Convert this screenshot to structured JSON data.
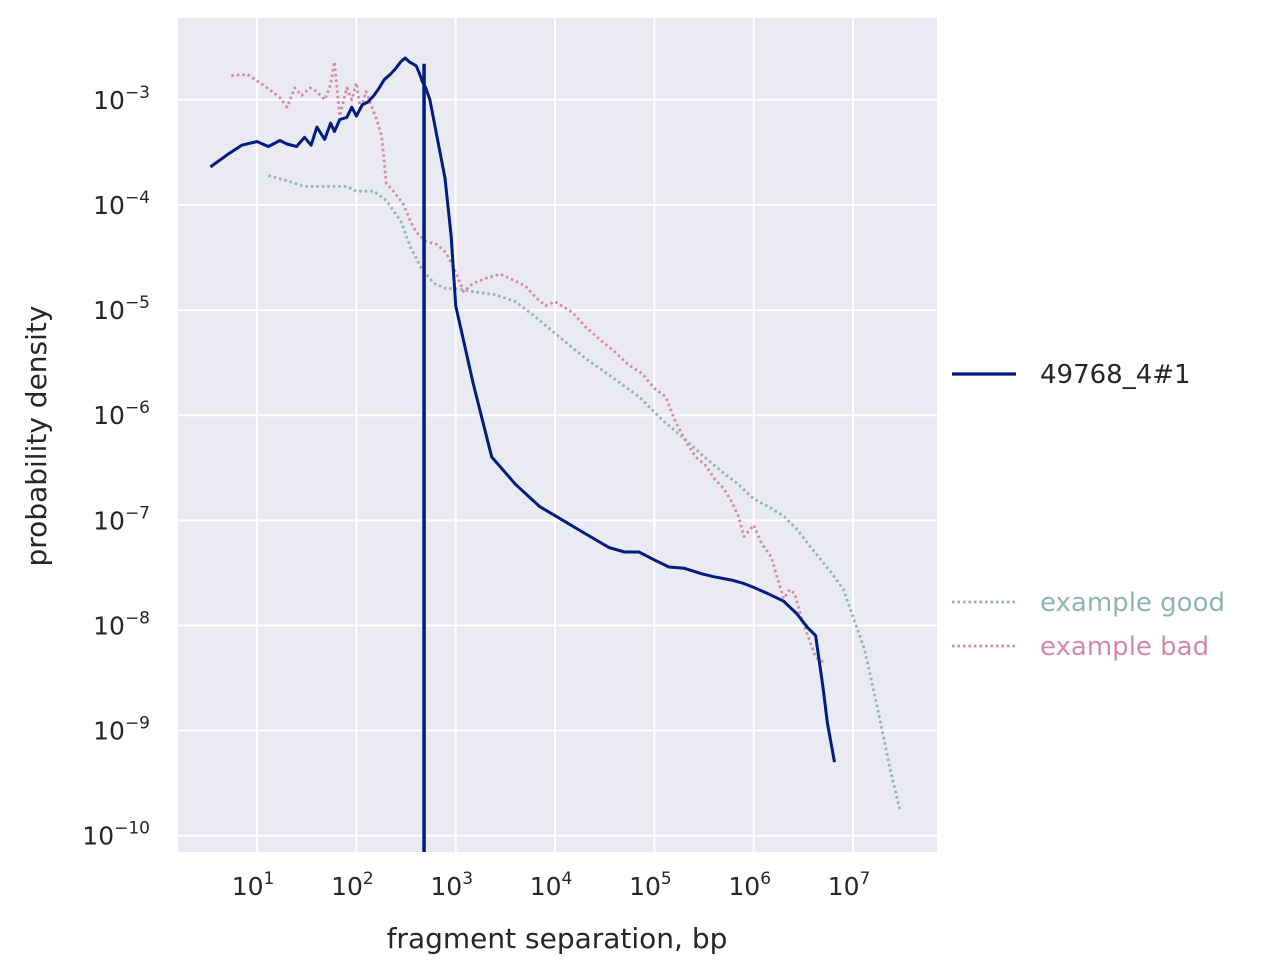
{
  "chart_data": {
    "type": "line",
    "xlabel": "fragment separation, bp",
    "ylabel": "probability density",
    "x_scale": "log",
    "y_scale": "log",
    "xlim": [
      1.6,
      70000000
    ],
    "ylim": [
      7e-11,
      0.006
    ],
    "grid": true,
    "x_ticks": [
      {
        "value": 10,
        "base": "10",
        "exp": "1"
      },
      {
        "value": 100,
        "base": "10",
        "exp": "2"
      },
      {
        "value": 1000,
        "base": "10",
        "exp": "3"
      },
      {
        "value": 10000,
        "base": "10",
        "exp": "4"
      },
      {
        "value": 100000,
        "base": "10",
        "exp": "5"
      },
      {
        "value": 1000000,
        "base": "10",
        "exp": "6"
      },
      {
        "value": 10000000,
        "base": "10",
        "exp": "7"
      }
    ],
    "y_ticks": [
      {
        "value": 0.001,
        "base": "10",
        "exp": "−3"
      },
      {
        "value": 0.0001,
        "base": "10",
        "exp": "−4"
      },
      {
        "value": 1e-05,
        "base": "10",
        "exp": "−5"
      },
      {
        "value": 1e-06,
        "base": "10",
        "exp": "−6"
      },
      {
        "value": 1e-07,
        "base": "10",
        "exp": "−7"
      },
      {
        "value": 1e-08,
        "base": "10",
        "exp": "−8"
      },
      {
        "value": 1e-09,
        "base": "10",
        "exp": "−9"
      },
      {
        "value": 1e-10,
        "base": "10",
        "exp": "−10"
      }
    ],
    "legend": [
      {
        "label": "49768_4#1",
        "color": "#001c7f",
        "style": "solid",
        "placement": "right-middle"
      },
      {
        "label": "example good",
        "color": "#8fb5b0",
        "style": "dotted",
        "placement": "right-lower"
      },
      {
        "label": "example bad",
        "color": "#d48aa7",
        "style": "dotted",
        "placement": "right-lower"
      }
    ],
    "vline": {
      "x": 480,
      "color": "#001c7f"
    },
    "series": [
      {
        "name": "49768_4#1",
        "color": "#001c7f",
        "style": "solid",
        "points": [
          [
            3.4,
            0.00023
          ],
          [
            5,
            0.0003
          ],
          [
            7,
            0.00037
          ],
          [
            10,
            0.0004
          ],
          [
            13,
            0.00036
          ],
          [
            17,
            0.00041
          ],
          [
            20,
            0.00038
          ],
          [
            25,
            0.00036
          ],
          [
            30,
            0.00044
          ],
          [
            35,
            0.00037
          ],
          [
            40,
            0.00055
          ],
          [
            48,
            0.00042
          ],
          [
            55,
            0.0006
          ],
          [
            60,
            0.0005
          ],
          [
            68,
            0.00065
          ],
          [
            80,
            0.00068
          ],
          [
            90,
            0.00085
          ],
          [
            100,
            0.0007
          ],
          [
            115,
            0.0009
          ],
          [
            130,
            0.00095
          ],
          [
            150,
            0.0011
          ],
          [
            170,
            0.0013
          ],
          [
            190,
            0.00155
          ],
          [
            220,
            0.00175
          ],
          [
            250,
            0.002
          ],
          [
            280,
            0.0023
          ],
          [
            310,
            0.0025
          ],
          [
            340,
            0.0023
          ],
          [
            370,
            0.0022
          ],
          [
            400,
            0.0021
          ],
          [
            430,
            0.0018
          ],
          [
            460,
            0.0015
          ],
          [
            500,
            0.0013
          ],
          [
            550,
            0.001
          ],
          [
            600,
            0.00065
          ],
          [
            680,
            0.00035
          ],
          [
            780,
            0.00018
          ],
          [
            900,
            5e-05
          ],
          [
            1000,
            1.1e-05
          ],
          [
            1500,
            2e-06
          ],
          [
            2300,
            4e-07
          ],
          [
            4000,
            2.2e-07
          ],
          [
            7000,
            1.35e-07
          ],
          [
            12000,
            1e-07
          ],
          [
            20000,
            7.5e-08
          ],
          [
            35000,
            5.5e-08
          ],
          [
            50000,
            5e-08
          ],
          [
            70000,
            5e-08
          ],
          [
            100000,
            4.2e-08
          ],
          [
            140000,
            3.6e-08
          ],
          [
            200000,
            3.5e-08
          ],
          [
            300000,
            3.1e-08
          ],
          [
            400000,
            2.9e-08
          ],
          [
            600000,
            2.7e-08
          ],
          [
            800000,
            2.5e-08
          ],
          [
            1000000,
            2.3e-08
          ],
          [
            1400000,
            2e-08
          ],
          [
            2000000,
            1.7e-08
          ],
          [
            2700000,
            1.3e-08
          ],
          [
            3500000,
            9.5e-09
          ],
          [
            4200000,
            8e-09
          ],
          [
            5000000,
            2.5e-09
          ],
          [
            5500000,
            1.2e-09
          ],
          [
            6500000,
            5e-10
          ]
        ]
      },
      {
        "name": "example good",
        "color": "#8fb5b0",
        "style": "dotted",
        "points": [
          [
            13,
            0.00019
          ],
          [
            20,
            0.00017
          ],
          [
            30,
            0.00015
          ],
          [
            50,
            0.00015
          ],
          [
            80,
            0.00015
          ],
          [
            100,
            0.000135
          ],
          [
            150,
            0.000135
          ],
          [
            200,
            0.00011
          ],
          [
            280,
            7e-05
          ],
          [
            350,
            4e-05
          ],
          [
            450,
            2.5e-05
          ],
          [
            600,
            1.8e-05
          ],
          [
            800,
            1.6e-05
          ],
          [
            1000,
            1.6e-05
          ],
          [
            1500,
            1.5e-05
          ],
          [
            2500,
            1.4e-05
          ],
          [
            4000,
            1.2e-05
          ],
          [
            6000,
            9e-06
          ],
          [
            10000,
            6e-06
          ],
          [
            20000,
            3.5e-06
          ],
          [
            40000,
            2.2e-06
          ],
          [
            70000,
            1.5e-06
          ],
          [
            120000,
            9e-07
          ],
          [
            200000,
            6e-07
          ],
          [
            300000,
            4.2e-07
          ],
          [
            500000,
            2.8e-07
          ],
          [
            700000,
            2.2e-07
          ],
          [
            1000000,
            1.6e-07
          ],
          [
            1500000,
            1.3e-07
          ],
          [
            2000000,
            1.1e-07
          ],
          [
            2800000,
            8e-08
          ],
          [
            3500000,
            6e-08
          ],
          [
            4500000,
            4.5e-08
          ],
          [
            6000000,
            3.2e-08
          ],
          [
            8000000,
            2.2e-08
          ],
          [
            10000000,
            1.2e-08
          ],
          [
            13000000,
            6e-09
          ],
          [
            18000000,
            1.5e-09
          ],
          [
            24000000,
            4e-10
          ],
          [
            30000000,
            1.7e-10
          ]
        ]
      },
      {
        "name": "example bad",
        "color": "#d48aa7",
        "style": "dotted",
        "points": [
          [
            5.5,
            0.0017
          ],
          [
            8,
            0.00175
          ],
          [
            12,
            0.00135
          ],
          [
            17,
            0.00105
          ],
          [
            20,
            0.00085
          ],
          [
            24,
            0.0013
          ],
          [
            28,
            0.0011
          ],
          [
            34,
            0.0013
          ],
          [
            40,
            0.0012
          ],
          [
            48,
            0.001
          ],
          [
            55,
            0.0014
          ],
          [
            60,
            0.0023
          ],
          [
            68,
            0.0007
          ],
          [
            80,
            0.0013
          ],
          [
            90,
            0.001
          ],
          [
            100,
            0.00145
          ],
          [
            110,
            0.0008
          ],
          [
            125,
            0.0012
          ],
          [
            140,
            0.0009
          ],
          [
            160,
            0.00065
          ],
          [
            180,
            0.00045
          ],
          [
            200,
            0.00016
          ],
          [
            230,
            0.00014
          ],
          [
            260,
            0.00012
          ],
          [
            300,
            0.0001
          ],
          [
            350,
            7e-05
          ],
          [
            400,
            5.5e-05
          ],
          [
            500,
            4.5e-05
          ],
          [
            650,
            4.2e-05
          ],
          [
            800,
            3.5e-05
          ],
          [
            1000,
            2.3e-05
          ],
          [
            1200,
            1.5e-05
          ],
          [
            1500,
            1.8e-05
          ],
          [
            2000,
            2e-05
          ],
          [
            2800,
            2.2e-05
          ],
          [
            3500,
            2e-05
          ],
          [
            5000,
            1.7e-05
          ],
          [
            6500,
            1.3e-05
          ],
          [
            8000,
            1.1e-05
          ],
          [
            10000,
            1.2e-05
          ],
          [
            15000,
            9.5e-06
          ],
          [
            20000,
            7e-06
          ],
          [
            30000,
            5e-06
          ],
          [
            40000,
            4e-06
          ],
          [
            55000,
            3e-06
          ],
          [
            75000,
            2.5e-06
          ],
          [
            100000,
            1.8e-06
          ],
          [
            130000,
            1.5e-06
          ],
          [
            160000,
            9e-07
          ],
          [
            200000,
            6e-07
          ],
          [
            260000,
            4e-07
          ],
          [
            330000,
            3.3e-07
          ],
          [
            400000,
            2.5e-07
          ],
          [
            500000,
            2e-07
          ],
          [
            600000,
            1.5e-07
          ],
          [
            700000,
            1.1e-07
          ],
          [
            800000,
            7e-08
          ],
          [
            1000000,
            9e-08
          ],
          [
            1200000,
            6e-08
          ],
          [
            1500000,
            4.5e-08
          ],
          [
            1800000,
            2.5e-08
          ],
          [
            2000000,
            1.8e-08
          ],
          [
            2300000,
            2.2e-08
          ],
          [
            2600000,
            2e-08
          ],
          [
            3000000,
            1.2e-08
          ],
          [
            3500000,
            8e-09
          ],
          [
            4200000,
            5e-09
          ],
          [
            5000000,
            4.5e-09
          ]
        ]
      }
    ]
  }
}
